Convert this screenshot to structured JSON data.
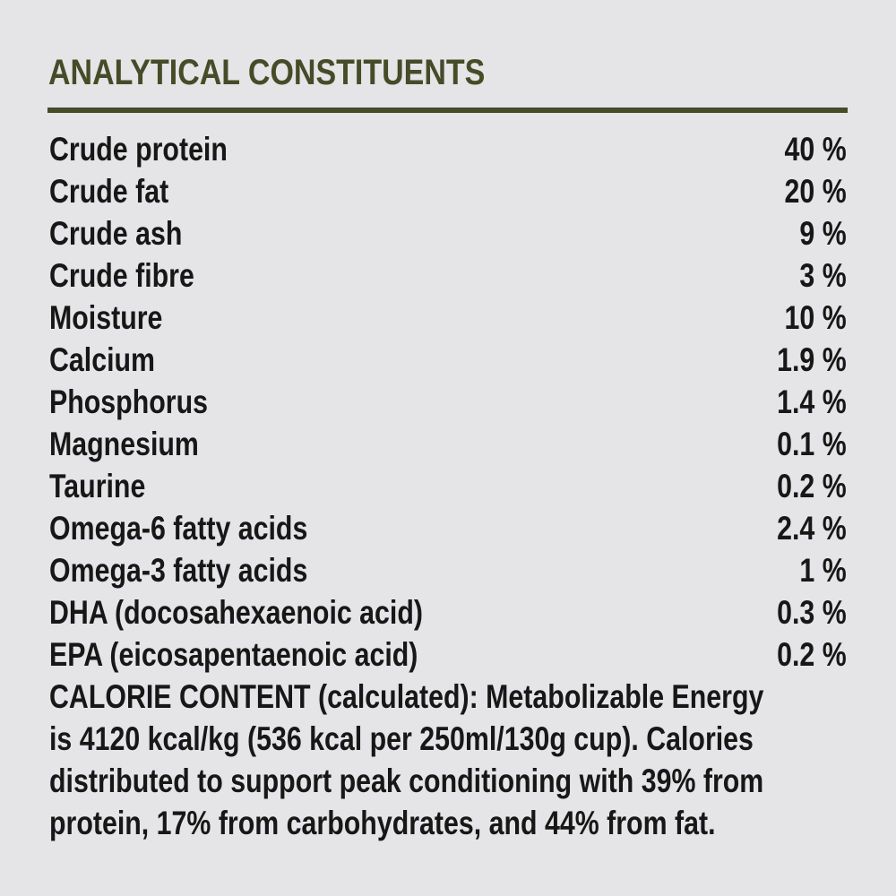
{
  "header": {
    "title": "ANALYTICAL CONSTITUENTS"
  },
  "colors": {
    "background": "#e5e4e6",
    "accent_olive": "#464b28",
    "text": "#171717"
  },
  "table": {
    "rows": [
      {
        "label": "Crude protein",
        "value": "40 %"
      },
      {
        "label": "Crude fat",
        "value": "20 %"
      },
      {
        "label": "Crude ash",
        "value": "9 %"
      },
      {
        "label": "Crude fibre",
        "value": "3 %"
      },
      {
        "label": "Moisture",
        "value": "10 %"
      },
      {
        "label": "Calcium",
        "value": "1.9 %"
      },
      {
        "label": "Phosphorus",
        "value": "1.4 %"
      },
      {
        "label": "Magnesium",
        "value": "0.1 %"
      },
      {
        "label": "Taurine",
        "value": "0.2 %"
      },
      {
        "label": "Omega-6 fatty acids",
        "value": "2.4 %"
      },
      {
        "label": "Omega-3 fatty acids",
        "value": "1 %"
      },
      {
        "label": "DHA (docosahexaenoic acid)",
        "value": "0.3 %"
      },
      {
        "label": "EPA (eicosapentaenoic acid)",
        "value": "0.2 %"
      }
    ]
  },
  "calorie_content": {
    "lines": [
      "CALORIE CONTENT (calculated): Metabolizable Energy",
      "is 4120 kcal/kg (536 kcal per 250ml/130g cup). Calories",
      "distributed to support peak conditioning with 39% from",
      "protein, 17% from carbohydrates, and 44% from fat."
    ]
  }
}
